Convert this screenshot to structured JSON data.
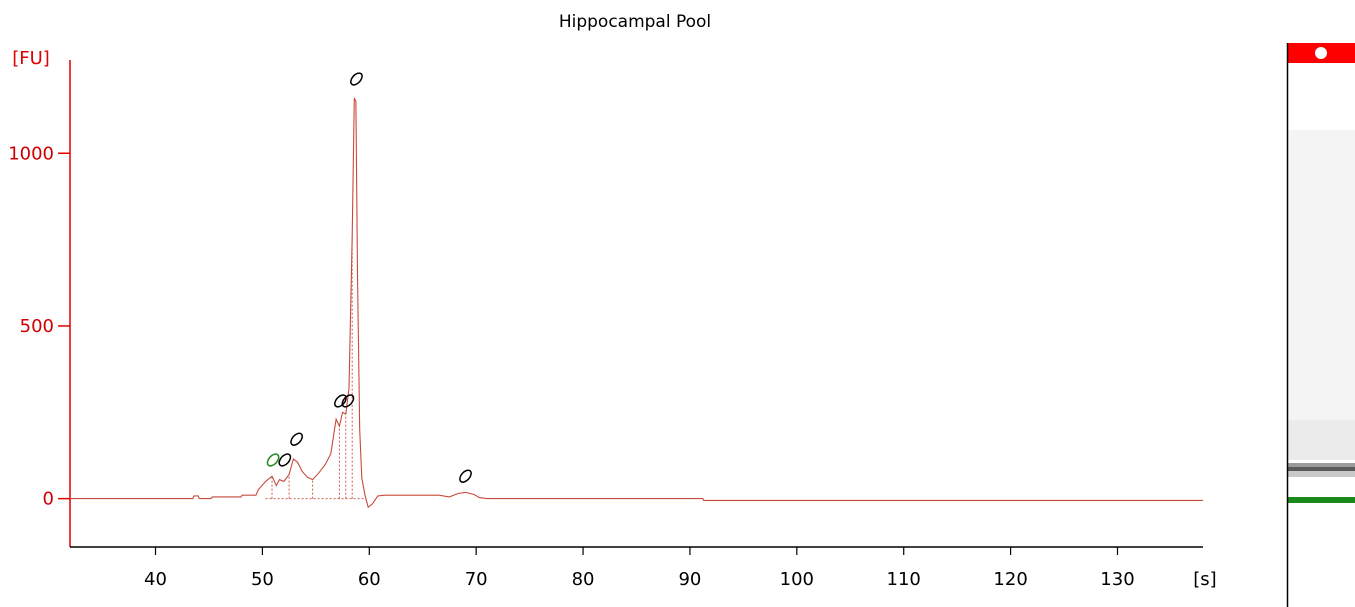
{
  "chart_data": {
    "type": "line",
    "title": "Hippocampal Pool",
    "ylabel": "[FU]",
    "xlabel": "[s]",
    "xlim": [
      32,
      138
    ],
    "ylim": [
      -140,
      1270
    ],
    "x_ticks": [
      40,
      50,
      60,
      70,
      80,
      90,
      100,
      110,
      120,
      130
    ],
    "y_ticks": [
      0,
      500,
      1000
    ],
    "grid": false,
    "colors": {
      "trace": "#c84a3c",
      "axis_y": "#e00000",
      "axis_x": "#000000",
      "marker_green": "#1f8a1f",
      "marker_black": "#000000",
      "gel_top": "#ff0000",
      "gel_band_green": "#1a8a1a"
    },
    "series": [
      {
        "x": [
          32,
          43.5,
          43.6,
          44.0,
          44.1,
          45.2,
          45.3,
          48.0,
          48.1,
          49.4,
          49.6,
          50.3,
          50.9,
          51.3,
          51.6,
          52.0,
          52.5,
          52.9,
          53.3,
          53.7,
          54.2,
          54.7,
          55.3,
          55.9,
          56.4,
          56.9,
          57.2,
          57.5,
          57.8,
          58.1,
          58.4,
          58.6,
          58.75,
          58.9,
          59.1,
          59.3,
          59.6,
          59.9,
          60.3,
          60.8,
          61.5,
          66.5,
          67.5,
          68.3,
          69.0,
          69.8,
          70.3,
          71.0,
          91.2,
          91.3,
          138
        ],
        "y": [
          0,
          0,
          8,
          8,
          0,
          0,
          5,
          5,
          10,
          10,
          25,
          50,
          65,
          38,
          55,
          50,
          70,
          115,
          105,
          80,
          62,
          55,
          75,
          100,
          130,
          230,
          210,
          250,
          245,
          320,
          760,
          1160,
          1150,
          650,
          200,
          60,
          10,
          -25,
          -15,
          8,
          10,
          10,
          5,
          15,
          18,
          12,
          3,
          0,
          0,
          -5,
          -5
        ]
      }
    ],
    "dashed_peak_markers": [
      {
        "x": 50.9,
        "y": 65
      },
      {
        "x": 52.5,
        "y": 70
      },
      {
        "x": 54.7,
        "y": 55
      },
      {
        "x": 57.2,
        "y": 210
      },
      {
        "x": 57.8,
        "y": 245
      },
      {
        "x": 58.4,
        "y": 760
      }
    ],
    "peak_annotations": [
      {
        "x": 51.0,
        "y": 112,
        "color": "green"
      },
      {
        "x": 52.1,
        "y": 112,
        "color": "black"
      },
      {
        "x": 53.2,
        "y": 172,
        "color": "black"
      },
      {
        "x": 57.3,
        "y": 283,
        "color": "black"
      },
      {
        "x": 58.0,
        "y": 283,
        "color": "black"
      },
      {
        "x": 58.8,
        "y": 1215,
        "color": "black"
      },
      {
        "x": 69.0,
        "y": 65,
        "color": "black"
      }
    ]
  }
}
